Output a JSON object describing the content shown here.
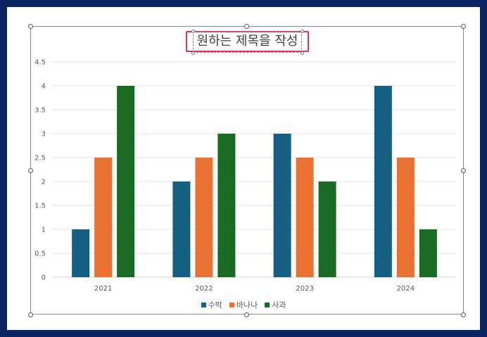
{
  "chart_data": {
    "type": "bar",
    "title": "원하는 제목을 작성",
    "categories": [
      "2021",
      "2022",
      "2023",
      "2024"
    ],
    "series": [
      {
        "name": "수박",
        "values": [
          1,
          2,
          3,
          4
        ],
        "color": "#156082"
      },
      {
        "name": "바나나",
        "values": [
          2.5,
          2.5,
          2.5,
          2.5
        ],
        "color": "#e97132"
      },
      {
        "name": "사과",
        "values": [
          4,
          3,
          2,
          1
        ],
        "color": "#196b24"
      }
    ],
    "yticks": [
      "0",
      "0.5",
      "1",
      "1.5",
      "2",
      "2.5",
      "3",
      "3.5",
      "4",
      "4.5"
    ],
    "ylim": [
      0,
      4.5
    ],
    "grid": true,
    "legend": "bottom"
  }
}
